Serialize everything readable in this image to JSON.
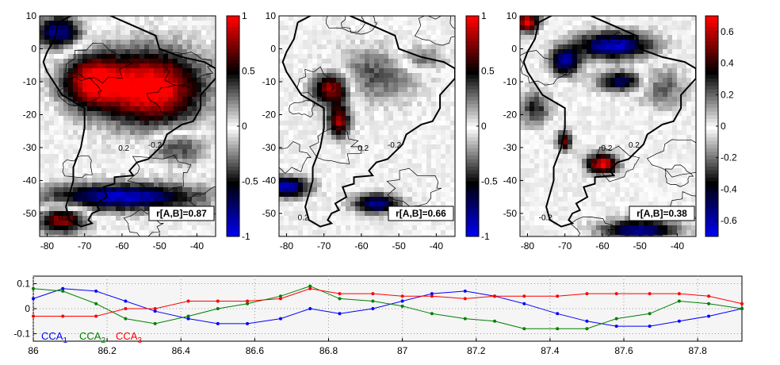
{
  "chart_data": [
    {
      "type": "heatmap",
      "panel": "map-1",
      "xlim": [
        -82,
        -35
      ],
      "ylim": [
        -57,
        10
      ],
      "xticks": [
        "-80",
        "-70",
        "-60",
        "-50",
        "-40"
      ],
      "yticks": [
        "10",
        "0",
        "-10",
        "-20",
        "-30",
        "-40",
        "-50"
      ],
      "annotation": "r[A,B]=0.87",
      "contour_labels": [
        "0.2",
        "-0.2",
        "0.2"
      ],
      "colorbar": {
        "range": [
          -1,
          1
        ],
        "ticks": [
          "1",
          "0.5",
          "0",
          "-0.5",
          "-1"
        ],
        "colors": [
          "#0000ff",
          "#000000",
          "#ffffff",
          "#000000",
          "#ff0000"
        ]
      }
    },
    {
      "type": "heatmap",
      "panel": "map-2",
      "xlim": [
        -82,
        -35
      ],
      "ylim": [
        -57,
        10
      ],
      "xticks": [
        "-80",
        "-70",
        "-60",
        "-50",
        "-40"
      ],
      "yticks": [
        "10",
        "0",
        "-10",
        "-20",
        "-30",
        "-40",
        "-50"
      ],
      "annotation": "r[A,B]=0.66",
      "contour_labels": [
        "0.2",
        "-0.2",
        "0.2"
      ],
      "colorbar": {
        "range": [
          -1,
          1
        ],
        "ticks": [
          "1",
          "0.5",
          "0",
          "-0.5",
          "-1"
        ],
        "colors": [
          "#0000ff",
          "#000000",
          "#ffffff",
          "#000000",
          "#ff0000"
        ]
      }
    },
    {
      "type": "heatmap",
      "panel": "map-3",
      "xlim": [
        -82,
        -35
      ],
      "ylim": [
        -57,
        10
      ],
      "xticks": [
        "-80",
        "-70",
        "-60",
        "-50",
        "-40"
      ],
      "yticks": [
        "10",
        "0",
        "-10",
        "-20",
        "-30",
        "-40",
        "-50"
      ],
      "annotation": "r[A,B]=0.38",
      "contour_labels": [
        "-0.2",
        "0.2",
        "-0.2"
      ],
      "colorbar": {
        "range": [
          -0.7,
          0.7
        ],
        "ticks": [
          "0.6",
          "0.4",
          "0.2",
          "0",
          "-0.2",
          "-0.4",
          "-0.6"
        ],
        "colors": [
          "#0000ff",
          "#000000",
          "#ffffff",
          "#000000",
          "#ff0000"
        ]
      }
    },
    {
      "type": "line",
      "panel": "time-series",
      "xlim": [
        86,
        87.92
      ],
      "ylim": [
        -0.13,
        0.13
      ],
      "xticks": [
        "86",
        "86.2",
        "86.4",
        "86.6",
        "86.8",
        "87",
        "87.2",
        "87.4",
        "87.6",
        "87.8"
      ],
      "yticks": [
        "0.1",
        "0",
        "-0.1"
      ],
      "grid": true,
      "legend_position": "bottom-left",
      "x": [
        86.0,
        86.08,
        86.17,
        86.25,
        86.33,
        86.42,
        86.5,
        86.58,
        86.67,
        86.75,
        86.83,
        86.92,
        87.0,
        87.08,
        87.17,
        87.25,
        87.33,
        87.42,
        87.5,
        87.58,
        87.67,
        87.75,
        87.83,
        87.92
      ],
      "series": [
        {
          "name": "CCA1",
          "label_main": "CCA",
          "label_sub": "1",
          "color": "#0000ff",
          "values": [
            0.04,
            0.08,
            0.07,
            0.03,
            -0.01,
            -0.04,
            -0.06,
            -0.06,
            -0.04,
            0.0,
            -0.02,
            0.0,
            0.03,
            0.06,
            0.07,
            0.05,
            0.02,
            -0.02,
            -0.05,
            -0.07,
            -0.07,
            -0.05,
            -0.03,
            0.0
          ]
        },
        {
          "name": "CCA2",
          "label_main": "CCA",
          "label_sub": "2",
          "color": "#008000",
          "values": [
            0.08,
            0.07,
            0.02,
            -0.04,
            -0.06,
            -0.03,
            0.0,
            0.02,
            0.05,
            0.09,
            0.04,
            0.03,
            0.01,
            -0.02,
            -0.04,
            -0.05,
            -0.08,
            -0.08,
            -0.08,
            -0.04,
            -0.02,
            0.03,
            0.02,
            0.0
          ]
        },
        {
          "name": "CCA3",
          "label_main": "CCA",
          "label_sub": "3",
          "color": "#ff0000",
          "values": [
            -0.03,
            -0.03,
            -0.03,
            0.0,
            0.0,
            0.03,
            0.03,
            0.03,
            0.04,
            0.08,
            0.06,
            0.06,
            0.05,
            0.05,
            0.04,
            0.05,
            0.05,
            0.05,
            0.06,
            0.06,
            0.06,
            0.06,
            0.05,
            0.02
          ]
        }
      ]
    }
  ]
}
